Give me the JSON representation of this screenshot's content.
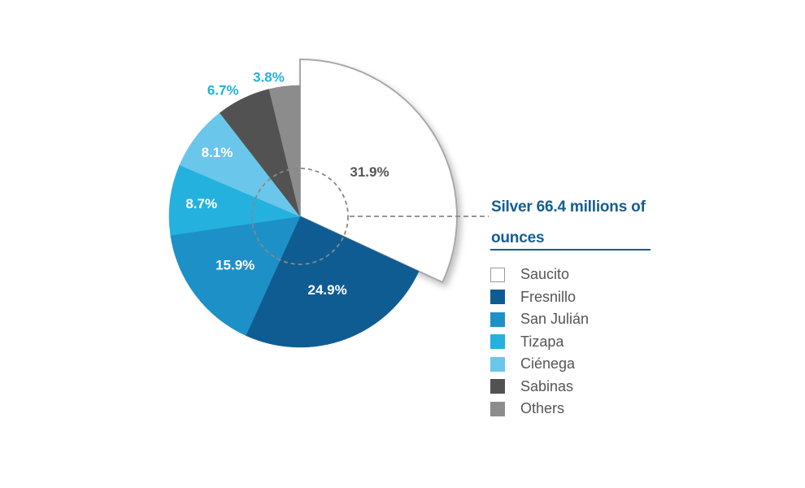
{
  "chart_data": {
    "type": "pie",
    "title": "Silver 66.4 millions of ounces",
    "legend_placement": "right",
    "slices": [
      {
        "name": "Saucito",
        "value": 31.9,
        "label": "31.9%",
        "color": "#ffffff",
        "label_color": "#555555",
        "exploded": true
      },
      {
        "name": "Fresnillo",
        "value": 24.9,
        "label": "24.9%",
        "color": "#0f5c93",
        "label_color": "#ffffff",
        "exploded": false
      },
      {
        "name": "San Julián",
        "value": 15.9,
        "label": "15.9%",
        "color": "#1e90c8",
        "label_color": "#ffffff",
        "exploded": false
      },
      {
        "name": "Tizapa",
        "value": 8.7,
        "label": "8.7%",
        "color": "#24b1de",
        "label_color": "#ffffff",
        "exploded": false
      },
      {
        "name": "Ciénega",
        "value": 8.1,
        "label": "8.1%",
        "color": "#6ac6ea",
        "label_color": "#ffffff",
        "exploded": false
      },
      {
        "name": "Sabinas",
        "value": 6.7,
        "label": "6.7%",
        "color": "#525252",
        "label_color": "#22b0de",
        "exploded": false
      },
      {
        "name": "Others",
        "value": 3.8,
        "label": "3.8%",
        "color": "#8c8c8c",
        "label_color": "#22b0de",
        "exploded": false
      }
    ]
  }
}
